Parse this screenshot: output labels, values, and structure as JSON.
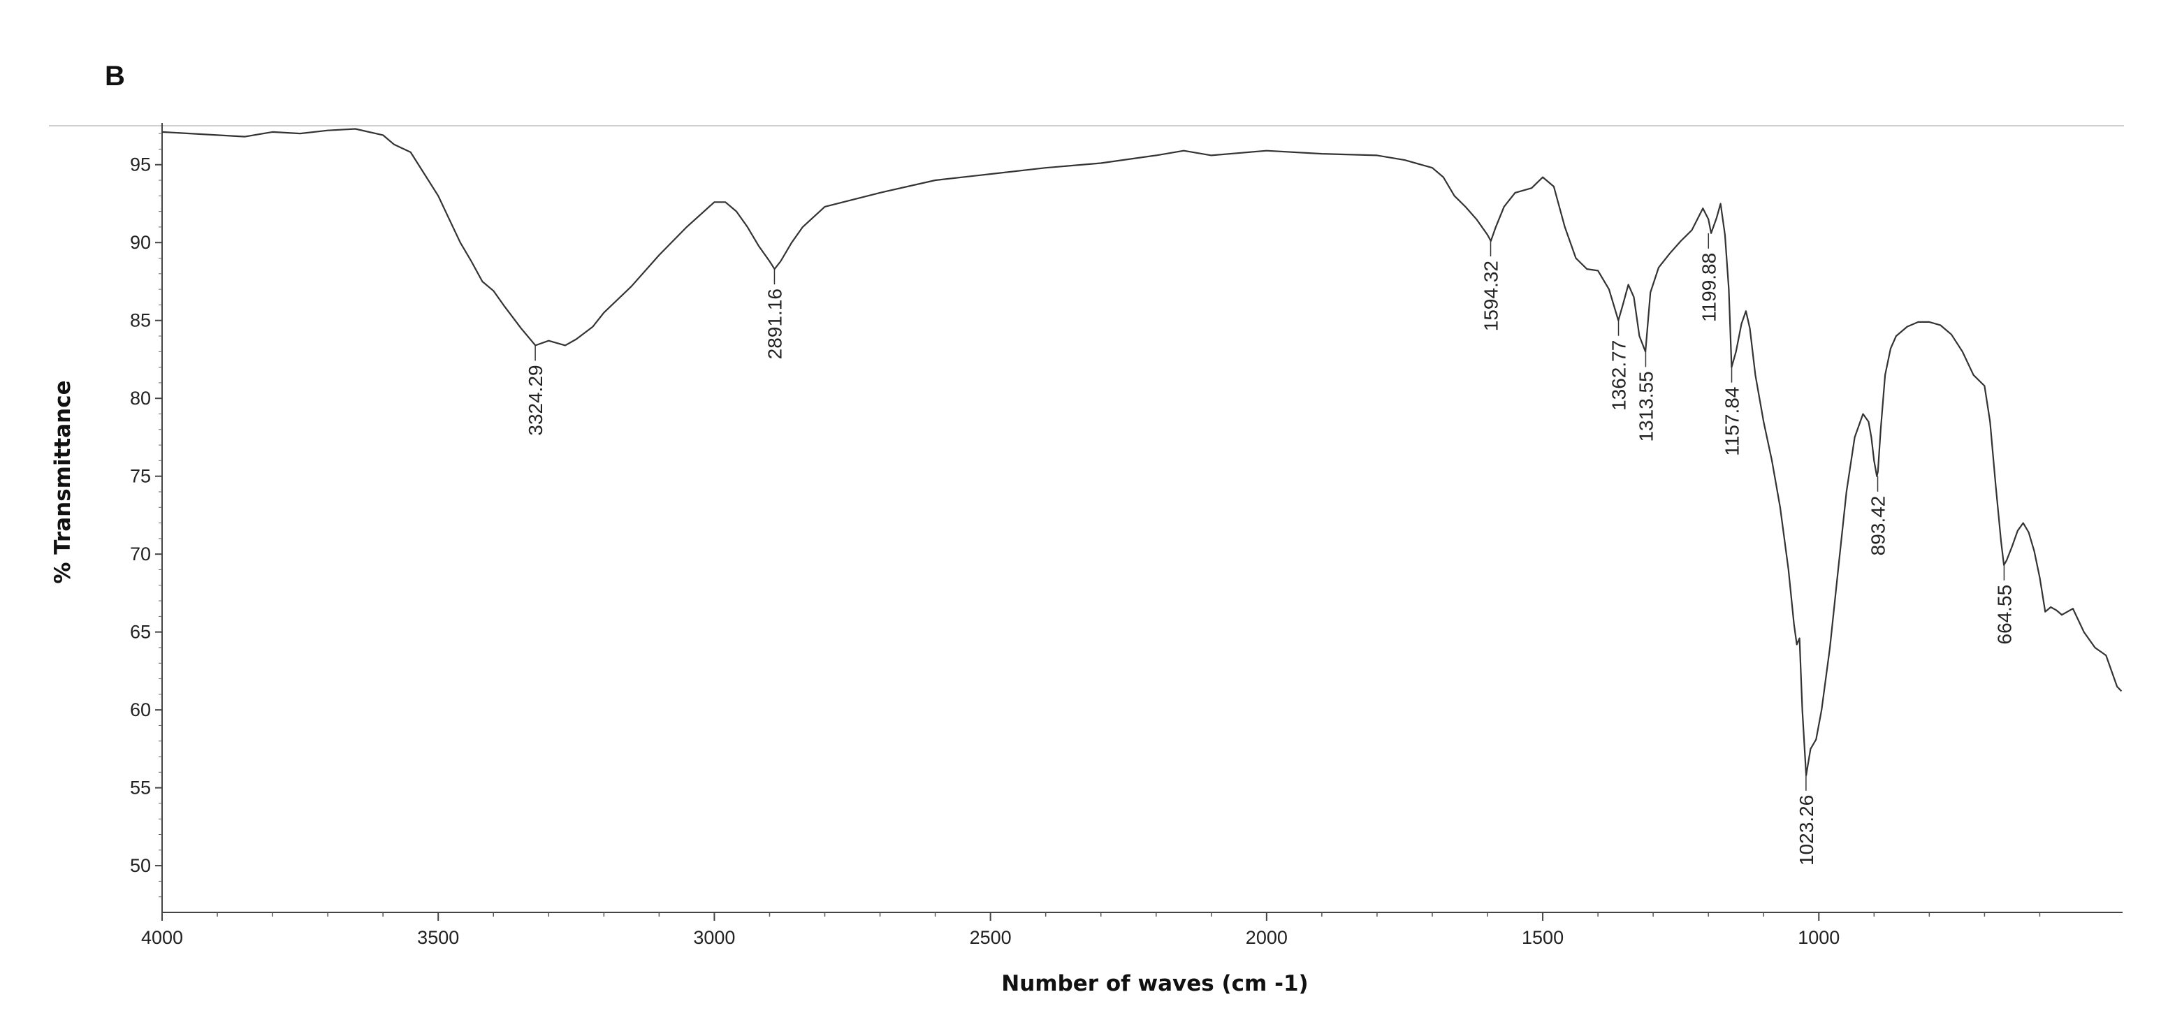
{
  "chart_data": {
    "type": "line",
    "panel_label": "B",
    "title": "",
    "xlabel": "Number of waves (cm -1)",
    "ylabel": "% Transmittance",
    "xlim": [
      4000,
      450
    ],
    "ylim": [
      47,
      97.5
    ],
    "x_ticks": [
      4000,
      3500,
      3000,
      2500,
      2000,
      1500,
      1000
    ],
    "y_ticks": [
      95,
      90,
      85,
      80,
      75,
      70,
      65,
      60,
      55,
      50
    ],
    "x_tick_labels": [
      "4000",
      "3500",
      "3000",
      "2500",
      "2000",
      "1500",
      "1000"
    ],
    "y_tick_labels": [
      "95",
      "90",
      "85",
      "80",
      "75",
      "70",
      "65",
      "60",
      "55",
      "50"
    ],
    "x_axis_reversed": true,
    "grid": false,
    "legend": "none",
    "line_color": "#333333",
    "series": [
      {
        "x": [
          4000,
          3950,
          3900,
          3850,
          3800,
          3750,
          3700,
          3650,
          3600,
          3580,
          3550,
          3500,
          3480,
          3460,
          3440,
          3420,
          3400,
          3380,
          3350,
          3324,
          3300,
          3270,
          3250,
          3220,
          3200,
          3150,
          3100,
          3050,
          3000,
          2980,
          2960,
          2940,
          2920,
          2900,
          2891,
          2880,
          2860,
          2840,
          2800,
          2700,
          2600,
          2500,
          2400,
          2300,
          2200,
          2150,
          2100,
          2000,
          1900,
          1800,
          1750,
          1700,
          1680,
          1660,
          1640,
          1620,
          1600,
          1594,
          1585,
          1570,
          1550,
          1520,
          1500,
          1480,
          1460,
          1440,
          1420,
          1400,
          1380,
          1363,
          1355,
          1345,
          1335,
          1325,
          1314,
          1305,
          1290,
          1270,
          1250,
          1230,
          1210,
          1200,
          1195,
          1185,
          1178,
          1170,
          1163,
          1158,
          1150,
          1140,
          1132,
          1125,
          1115,
          1100,
          1085,
          1070,
          1055,
          1045,
          1040,
          1035,
          1030,
          1023,
          1015,
          1005,
          995,
          980,
          965,
          950,
          935,
          920,
          910,
          905,
          900,
          895,
          893,
          888,
          880,
          870,
          860,
          840,
          820,
          800,
          780,
          760,
          740,
          720,
          700,
          690,
          680,
          670,
          665,
          660,
          650,
          640,
          630,
          620,
          610,
          600,
          590,
          580,
          570,
          560,
          540,
          520,
          500,
          480,
          460,
          452
        ],
        "y": [
          97.1,
          97.0,
          96.9,
          96.8,
          97.1,
          97.0,
          97.2,
          97.3,
          96.9,
          96.3,
          95.8,
          93.0,
          91.5,
          90.0,
          88.8,
          87.5,
          86.9,
          85.9,
          84.5,
          83.4,
          83.7,
          83.4,
          83.8,
          84.6,
          85.5,
          87.2,
          89.2,
          91.0,
          92.6,
          92.6,
          92.0,
          91.0,
          89.8,
          88.8,
          88.3,
          88.8,
          90.0,
          91.0,
          92.3,
          93.2,
          94.0,
          94.4,
          94.8,
          95.1,
          95.6,
          95.9,
          95.6,
          95.9,
          95.7,
          95.6,
          95.3,
          94.8,
          94.2,
          93.0,
          92.3,
          91.5,
          90.5,
          90.1,
          91.0,
          92.3,
          93.2,
          93.5,
          94.2,
          93.6,
          91.0,
          89.0,
          88.3,
          88.2,
          87.0,
          85.0,
          86.0,
          87.3,
          86.5,
          84.0,
          83.0,
          86.8,
          88.4,
          89.3,
          90.1,
          90.8,
          92.2,
          91.5,
          90.6,
          91.6,
          92.5,
          90.5,
          87.0,
          82.0,
          83.0,
          84.8,
          85.6,
          84.5,
          81.5,
          78.5,
          76.0,
          73.0,
          69.0,
          65.5,
          64.2,
          64.6,
          60.0,
          55.8,
          57.5,
          58.1,
          60.0,
          64.0,
          69.0,
          74.0,
          77.5,
          79.0,
          78.5,
          77.5,
          76.0,
          75.0,
          75.3,
          78.0,
          81.5,
          83.2,
          84.0,
          84.6,
          84.9,
          84.9,
          84.7,
          84.1,
          83.0,
          81.5,
          80.8,
          78.5,
          74.5,
          70.8,
          69.3,
          69.6,
          70.5,
          71.5,
          72.0,
          71.4,
          70.2,
          68.5,
          66.3,
          66.6,
          66.4,
          66.1,
          66.5,
          65.0,
          64.0,
          63.5,
          61.5,
          61.2
        ]
      }
    ],
    "annotations": [
      {
        "x": 3324.29,
        "y": 83.4,
        "text": "3324.29"
      },
      {
        "x": 2891.16,
        "y": 88.3,
        "text": "2891.16"
      },
      {
        "x": 1594.32,
        "y": 90.1,
        "text": "1594.32"
      },
      {
        "x": 1362.77,
        "y": 85.0,
        "text": "1362.77"
      },
      {
        "x": 1313.55,
        "y": 83.0,
        "text": "1313.55"
      },
      {
        "x": 1199.88,
        "y": 90.6,
        "text": "1199.88"
      },
      {
        "x": 1157.84,
        "y": 82.0,
        "text": "1157.84"
      },
      {
        "x": 1023.26,
        "y": 55.8,
        "text": "1023.26"
      },
      {
        "x": 893.42,
        "y": 75.0,
        "text": "893.42"
      },
      {
        "x": 664.55,
        "y": 69.3,
        "text": "664.55"
      }
    ]
  }
}
